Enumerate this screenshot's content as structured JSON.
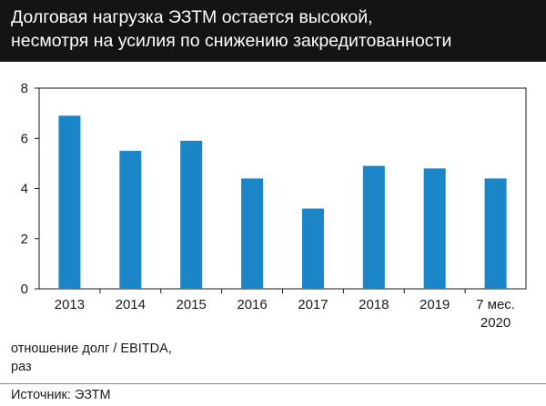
{
  "header": {
    "title_line1": "Долговая нагрузка ЭЗТМ остается высокой,",
    "title_line2": "несмотря на усилия по снижению закредитованности"
  },
  "chart_data": {
    "type": "bar",
    "categories": [
      [
        "2013"
      ],
      [
        "2014"
      ],
      [
        "2015"
      ],
      [
        "2016"
      ],
      [
        "2017"
      ],
      [
        "2018"
      ],
      [
        "2019"
      ],
      [
        "7 мес.",
        "2020"
      ]
    ],
    "values": [
      6.9,
      5.5,
      5.9,
      4.4,
      3.2,
      4.9,
      4.8,
      4.4
    ],
    "ylim": [
      0,
      8
    ],
    "yticks": [
      0,
      2,
      4,
      6,
      8
    ],
    "grid": false,
    "bar_color": "#1a86c8",
    "ylabel_lines": [
      "отношение долг / EBITDA,",
      "раз"
    ]
  },
  "footer": {
    "source": "Источник: ЭЗТМ"
  }
}
